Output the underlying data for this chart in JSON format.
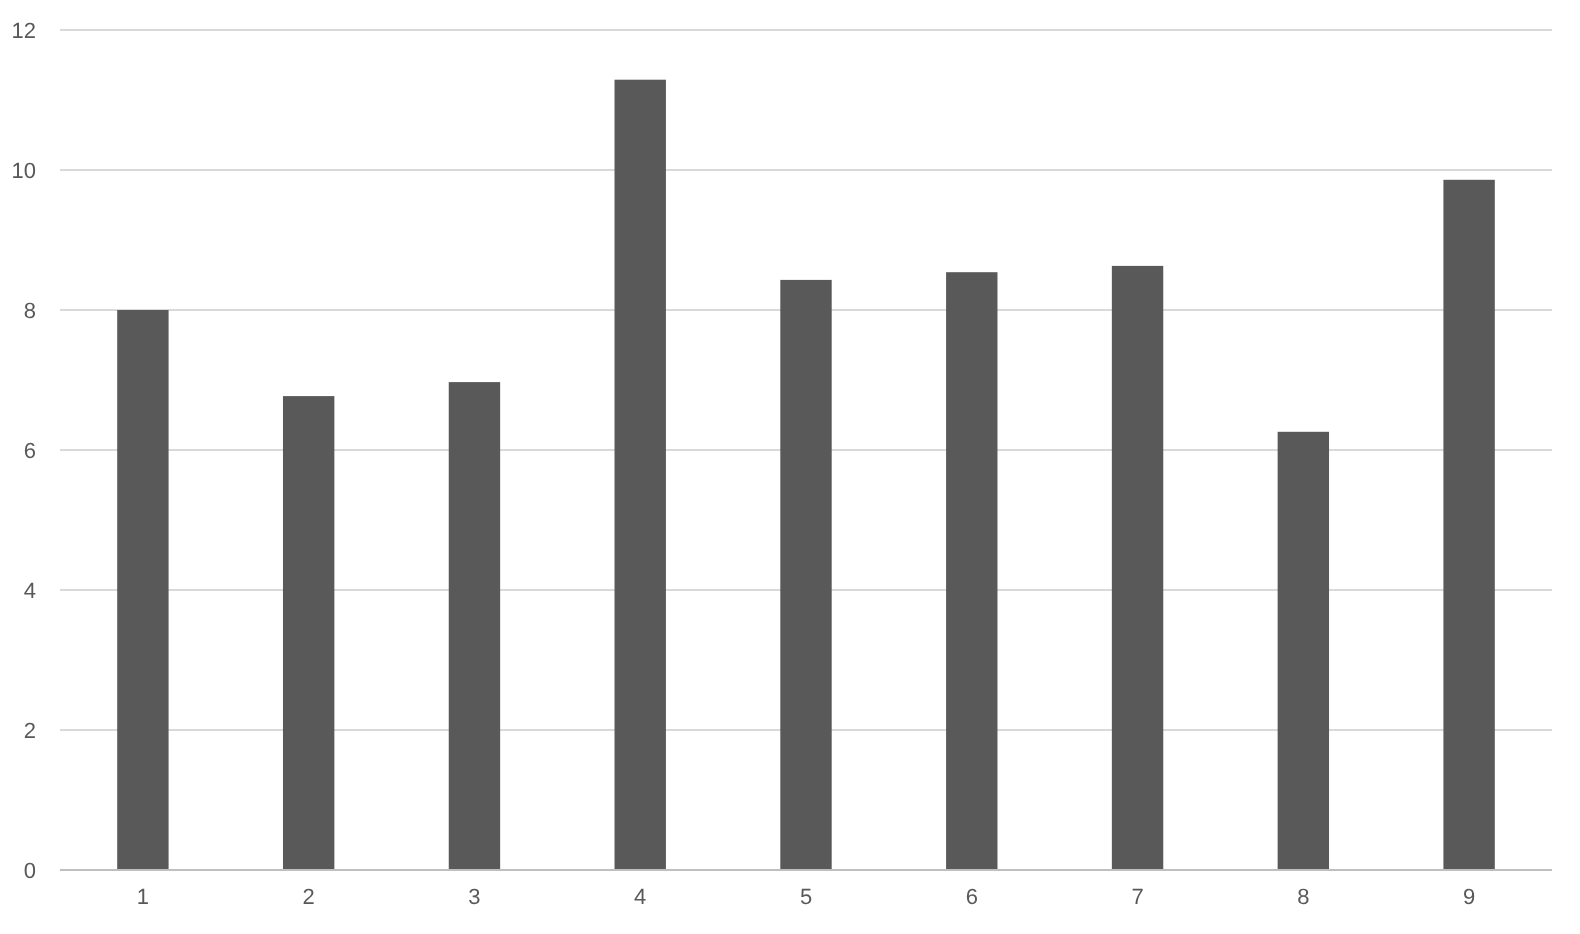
{
  "chart_data": {
    "type": "bar",
    "categories": [
      "1",
      "2",
      "3",
      "4",
      "5",
      "6",
      "7",
      "8",
      "9"
    ],
    "values": [
      8.0,
      6.77,
      6.97,
      11.29,
      8.43,
      8.54,
      8.63,
      6.26,
      9.86
    ],
    "color": "#595959",
    "ylim": [
      0,
      12
    ],
    "yticks": [
      0,
      2,
      4,
      6,
      8,
      10,
      12
    ],
    "grid": "y"
  }
}
